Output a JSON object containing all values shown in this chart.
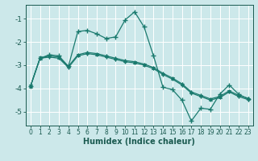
{
  "xlabel": "Humidex (Indice chaleur)",
  "bg_color": "#cce8ea",
  "grid_color": "#ffffff",
  "line_color": "#1a7a6e",
  "tick_color": "#1a5a50",
  "xlim": [
    -0.5,
    23.5
  ],
  "ylim": [
    -5.6,
    -0.4
  ],
  "yticks": [
    -5,
    -4,
    -3,
    -2,
    -1
  ],
  "xticks": [
    0,
    1,
    2,
    3,
    4,
    5,
    6,
    7,
    8,
    9,
    10,
    11,
    12,
    13,
    14,
    15,
    16,
    17,
    18,
    19,
    20,
    21,
    22,
    23
  ],
  "series1_x": [
    0,
    1,
    2,
    3,
    4,
    5,
    6,
    7,
    8,
    9,
    10,
    11,
    12,
    13,
    14,
    15,
    16,
    17,
    18,
    19,
    20,
    21,
    22,
    23
  ],
  "series1_y": [
    -3.9,
    -2.7,
    -2.55,
    -2.6,
    -3.05,
    -1.55,
    -1.5,
    -1.65,
    -1.85,
    -1.78,
    -1.05,
    -0.7,
    -1.35,
    -2.6,
    -3.95,
    -4.05,
    -4.5,
    -5.4,
    -4.85,
    -4.9,
    -4.25,
    -3.85,
    -4.25,
    -4.45
  ],
  "series2_x": [
    0,
    1,
    2,
    3,
    4,
    5,
    6,
    7,
    8,
    9,
    10,
    11,
    12,
    13,
    14,
    15,
    16,
    17,
    18,
    19,
    20,
    21,
    22,
    23
  ],
  "series2_y": [
    -3.9,
    -2.7,
    -2.6,
    -2.65,
    -3.05,
    -2.55,
    -2.45,
    -2.5,
    -2.6,
    -2.7,
    -2.8,
    -2.85,
    -2.95,
    -3.1,
    -3.35,
    -3.55,
    -3.8,
    -4.15,
    -4.3,
    -4.45,
    -4.35,
    -4.1,
    -4.3,
    -4.42
  ],
  "series3_x": [
    0,
    1,
    2,
    3,
    4,
    5,
    6,
    7,
    8,
    9,
    10,
    11,
    12,
    13,
    14,
    15,
    16,
    17,
    18,
    19,
    20,
    21,
    22,
    23
  ],
  "series3_y": [
    -3.9,
    -2.7,
    -2.65,
    -2.7,
    -3.1,
    -2.6,
    -2.5,
    -2.55,
    -2.65,
    -2.75,
    -2.85,
    -2.9,
    -3.0,
    -3.15,
    -3.4,
    -3.6,
    -3.85,
    -4.2,
    -4.35,
    -4.5,
    -4.4,
    -4.15,
    -4.35,
    -4.48
  ]
}
